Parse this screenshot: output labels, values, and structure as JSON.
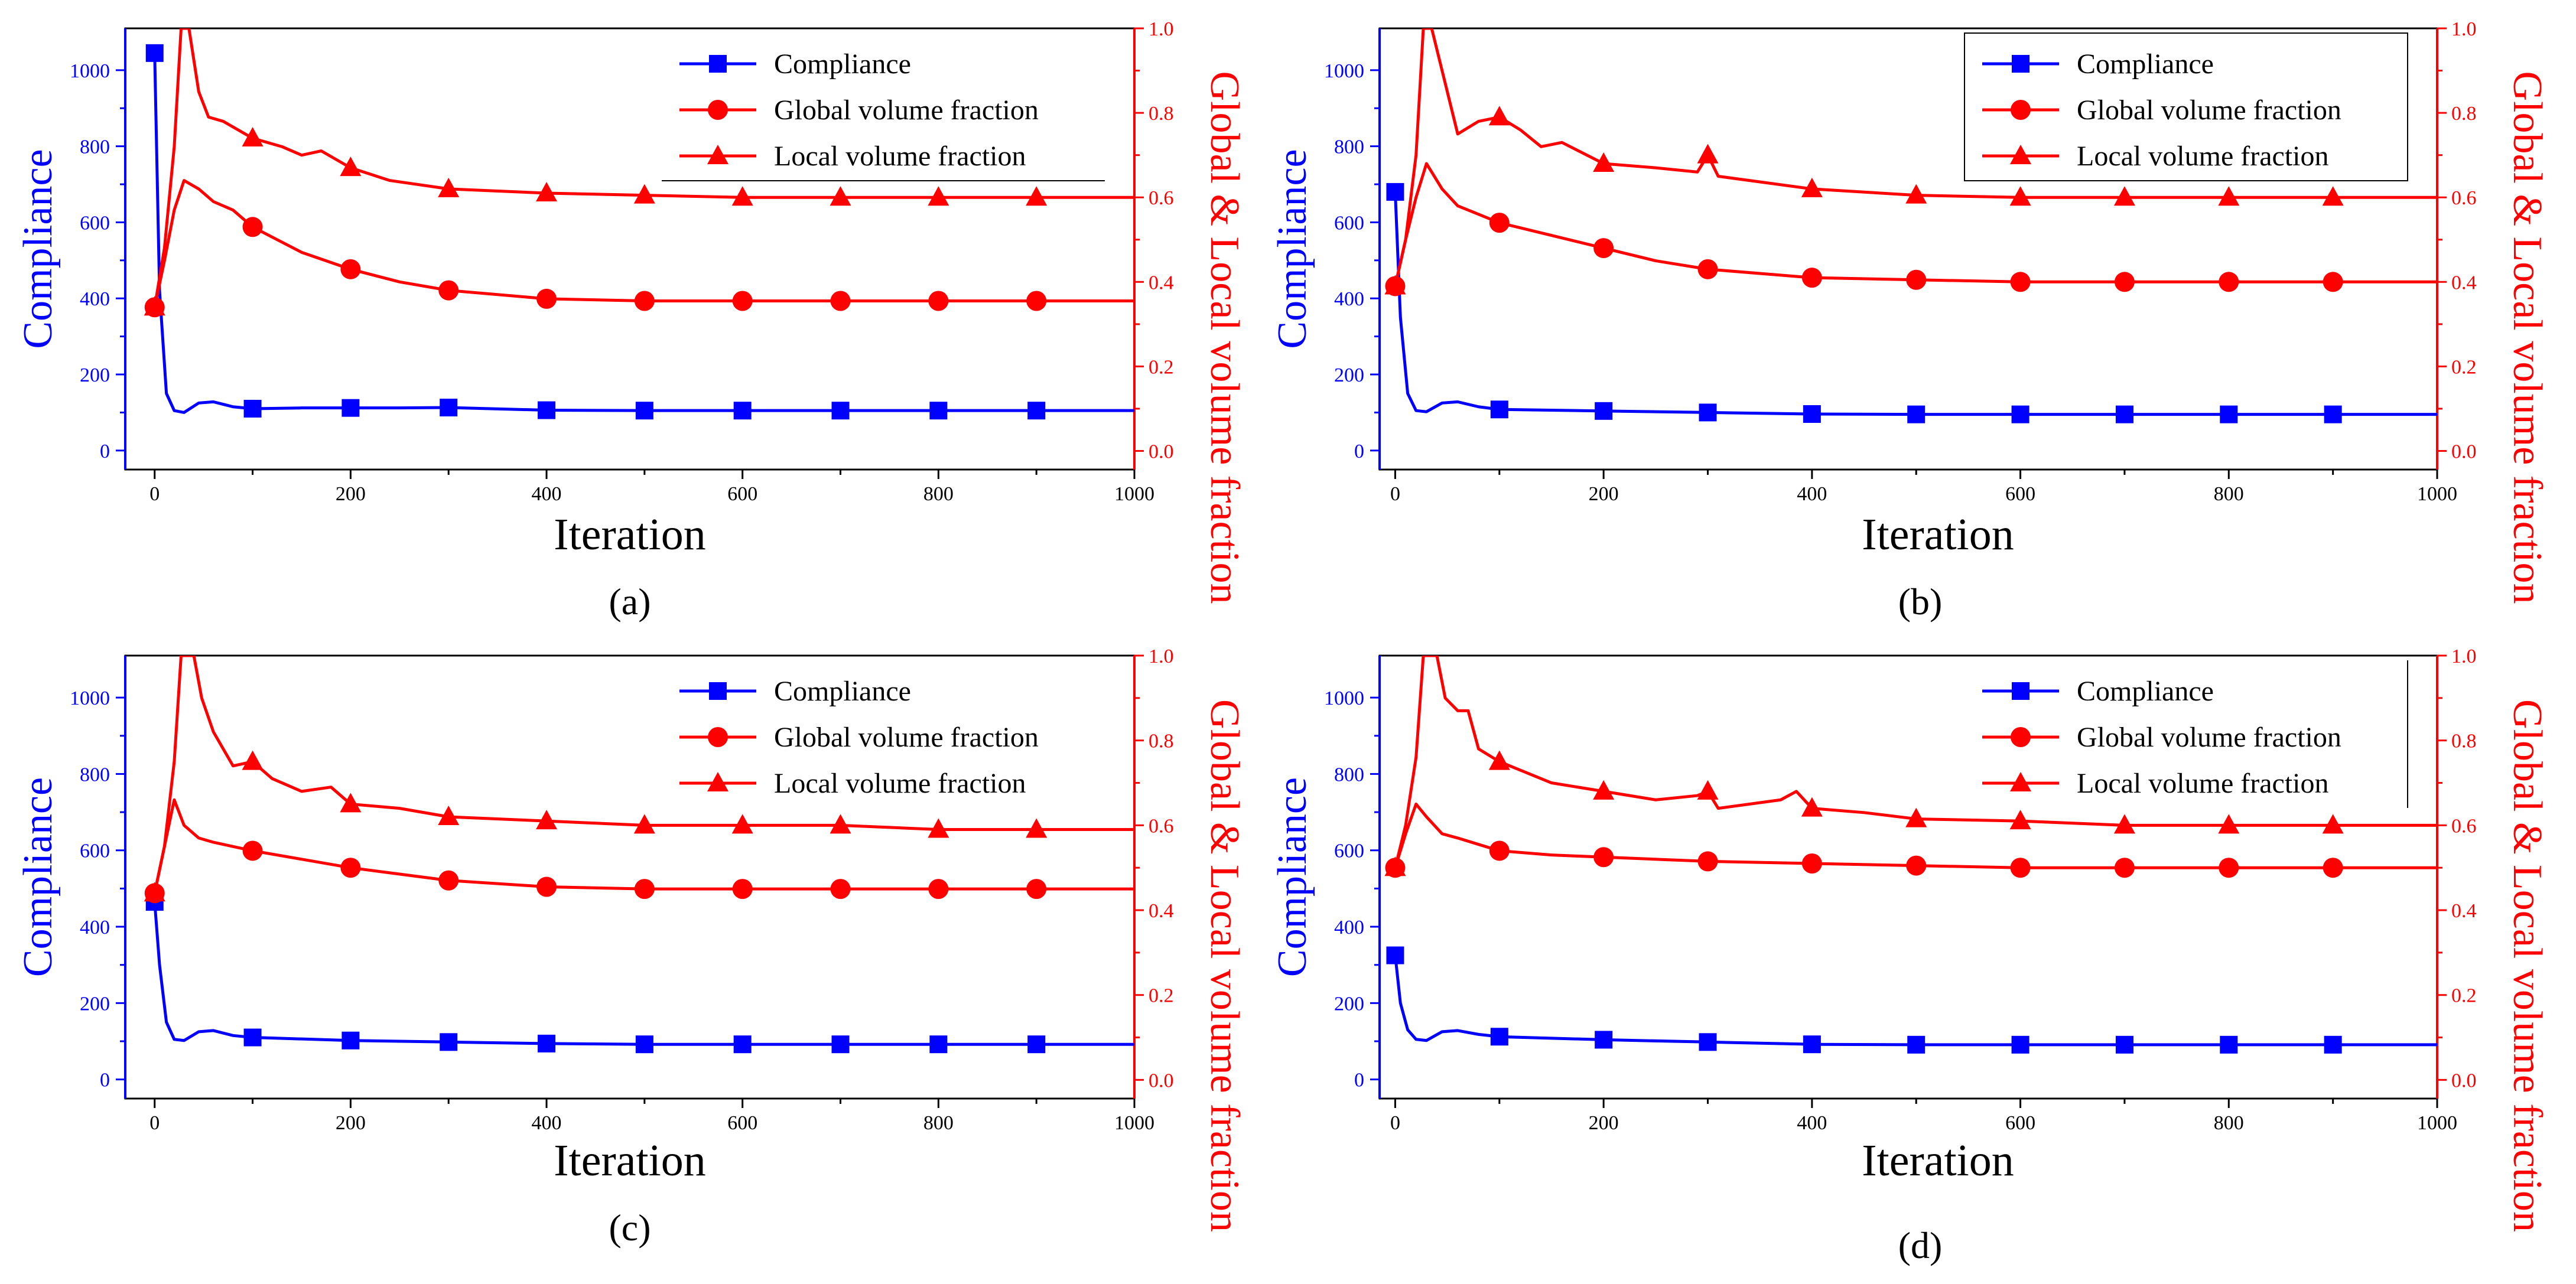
{
  "chart_data": [
    {
      "panel_label": "(a)",
      "type": "line",
      "xlabel": "Iteration",
      "ylabel_left": "Compliance",
      "ylabel_right": "Global & Local volume fraction",
      "xlim": [
        -30,
        1000
      ],
      "ylim_left": [
        -50,
        1110
      ],
      "ylim_right": [
        -0.044,
        1.0
      ],
      "x_ticks": [
        0,
        200,
        400,
        600,
        800,
        1000
      ],
      "x_minor_ticks": [
        100,
        300,
        500,
        700,
        900
      ],
      "y_left_ticks": [
        0,
        200,
        400,
        600,
        800,
        1000
      ],
      "y_right_ticks": [
        0.0,
        0.2,
        0.4,
        0.6,
        0.8,
        1.0
      ],
      "legend_position": "top-right",
      "legend_frame": "partial",
      "series": [
        {
          "name": "Compliance",
          "axis": "left",
          "color": "#0000ff",
          "marker": "square",
          "x": [
            0,
            5,
            12,
            20,
            30,
            45,
            60,
            80,
            100,
            150,
            200,
            250,
            300,
            400,
            500,
            600,
            700,
            800,
            900,
            1000
          ],
          "values": [
            1045,
            420,
            150,
            105,
            100,
            125,
            128,
            115,
            110,
            112,
            112,
            112,
            113,
            106,
            105,
            105,
            105,
            105,
            105,
            105
          ]
        },
        {
          "name": "Global volume fraction",
          "axis": "right",
          "color": "#ff0000",
          "marker": "circle",
          "x": [
            0,
            10,
            20,
            30,
            45,
            60,
            80,
            100,
            150,
            200,
            250,
            300,
            400,
            500,
            600,
            700,
            800,
            900,
            1000
          ],
          "values": [
            0.34,
            0.45,
            0.57,
            0.64,
            0.62,
            0.59,
            0.57,
            0.53,
            0.47,
            0.43,
            0.4,
            0.38,
            0.36,
            0.355,
            0.355,
            0.355,
            0.355,
            0.355,
            0.355
          ]
        },
        {
          "name": "Local volume fraction",
          "axis": "right",
          "color": "#ff0000",
          "marker": "triangle",
          "x": [
            0,
            10,
            20,
            27,
            35,
            45,
            55,
            70,
            100,
            130,
            150,
            170,
            200,
            240,
            300,
            400,
            500,
            600,
            700,
            800,
            900,
            1000
          ],
          "values": [
            0.34,
            0.48,
            0.72,
            1.0,
            1.0,
            0.85,
            0.79,
            0.78,
            0.74,
            0.72,
            0.7,
            0.71,
            0.67,
            0.64,
            0.62,
            0.61,
            0.605,
            0.6,
            0.6,
            0.6,
            0.6,
            0.6
          ]
        }
      ]
    },
    {
      "panel_label": "(b)",
      "type": "line",
      "xlabel": "Iteration",
      "ylabel_left": "Compliance",
      "ylabel_right": "Global & Local volume fraction",
      "xlim": [
        -15,
        1000
      ],
      "ylim_left": [
        -50,
        1110
      ],
      "ylim_right": [
        -0.044,
        1.0
      ],
      "x_ticks": [
        0,
        200,
        400,
        600,
        800,
        1000
      ],
      "x_minor_ticks": [
        100,
        300,
        500,
        700,
        900
      ],
      "y_left_ticks": [
        0,
        200,
        400,
        600,
        800,
        1000
      ],
      "y_right_ticks": [
        0.0,
        0.2,
        0.4,
        0.6,
        0.8,
        1.0
      ],
      "legend_position": "top-right",
      "legend_frame": "box",
      "series": [
        {
          "name": "Compliance",
          "axis": "left",
          "color": "#0000ff",
          "marker": "square",
          "x": [
            0,
            5,
            12,
            20,
            30,
            45,
            60,
            80,
            100,
            200,
            300,
            400,
            500,
            600,
            700,
            800,
            900,
            1000
          ],
          "values": [
            680,
            350,
            150,
            105,
            102,
            125,
            128,
            115,
            108,
            104,
            100,
            96,
            95,
            95,
            95,
            95,
            95,
            95
          ]
        },
        {
          "name": "Global volume fraction",
          "axis": "right",
          "color": "#ff0000",
          "marker": "circle",
          "x": [
            0,
            10,
            20,
            30,
            45,
            60,
            80,
            100,
            150,
            200,
            250,
            300,
            400,
            500,
            600,
            700,
            800,
            900,
            1000
          ],
          "values": [
            0.39,
            0.5,
            0.6,
            0.68,
            0.62,
            0.58,
            0.56,
            0.54,
            0.51,
            0.48,
            0.45,
            0.43,
            0.41,
            0.405,
            0.4,
            0.4,
            0.4,
            0.4,
            0.4
          ]
        },
        {
          "name": "Local volume fraction",
          "axis": "right",
          "color": "#ff0000",
          "marker": "triangle",
          "x": [
            0,
            10,
            20,
            27,
            35,
            45,
            60,
            80,
            100,
            120,
            140,
            160,
            200,
            250,
            290,
            300,
            310,
            400,
            500,
            600,
            700,
            800,
            900,
            1000
          ],
          "values": [
            0.39,
            0.5,
            0.7,
            1.0,
            1.0,
            0.9,
            0.75,
            0.78,
            0.79,
            0.76,
            0.72,
            0.73,
            0.68,
            0.67,
            0.66,
            0.7,
            0.65,
            0.62,
            0.605,
            0.6,
            0.6,
            0.6,
            0.6,
            0.6
          ]
        }
      ]
    },
    {
      "panel_label": "(c)",
      "type": "line",
      "xlabel": "Iteration",
      "ylabel_left": "Compliance",
      "ylabel_right": "Global & Local volume fraction",
      "xlim": [
        -30,
        1000
      ],
      "ylim_left": [
        -50,
        1110
      ],
      "ylim_right": [
        -0.044,
        1.0
      ],
      "x_ticks": [
        0,
        200,
        400,
        600,
        800,
        1000
      ],
      "x_minor_ticks": [
        100,
        300,
        500,
        700,
        900
      ],
      "y_left_ticks": [
        0,
        200,
        400,
        600,
        800,
        1000
      ],
      "y_right_ticks": [
        0.0,
        0.2,
        0.4,
        0.6,
        0.8,
        1.0
      ],
      "legend_position": "top-right",
      "legend_frame": "none",
      "series": [
        {
          "name": "Compliance",
          "axis": "left",
          "color": "#0000ff",
          "marker": "square",
          "x": [
            0,
            5,
            12,
            20,
            30,
            45,
            60,
            80,
            100,
            200,
            300,
            400,
            500,
            600,
            700,
            800,
            900,
            1000
          ],
          "values": [
            465,
            300,
            150,
            105,
            102,
            125,
            128,
            115,
            110,
            102,
            98,
            94,
            92,
            92,
            92,
            92,
            92,
            92
          ]
        },
        {
          "name": "Global volume fraction",
          "axis": "right",
          "color": "#ff0000",
          "marker": "circle",
          "x": [
            0,
            10,
            20,
            30,
            45,
            60,
            80,
            100,
            150,
            200,
            250,
            300,
            400,
            500,
            600,
            700,
            800,
            900,
            1000
          ],
          "values": [
            0.44,
            0.55,
            0.66,
            0.6,
            0.57,
            0.56,
            0.55,
            0.54,
            0.52,
            0.5,
            0.485,
            0.47,
            0.455,
            0.45,
            0.45,
            0.45,
            0.45,
            0.45,
            0.45
          ]
        },
        {
          "name": "Local volume fraction",
          "axis": "right",
          "color": "#ff0000",
          "marker": "triangle",
          "x": [
            0,
            10,
            20,
            27,
            40,
            48,
            60,
            80,
            100,
            120,
            150,
            180,
            200,
            250,
            300,
            400,
            500,
            600,
            700,
            800,
            900,
            1000
          ],
          "values": [
            0.44,
            0.55,
            0.75,
            1.0,
            1.0,
            0.9,
            0.82,
            0.74,
            0.75,
            0.71,
            0.68,
            0.69,
            0.65,
            0.64,
            0.62,
            0.61,
            0.6,
            0.6,
            0.6,
            0.59,
            0.59,
            0.59
          ]
        }
      ]
    },
    {
      "panel_label": "(d)",
      "type": "line",
      "xlabel": "Iteration",
      "ylabel_left": "Compliance",
      "ylabel_right": "Global & Local volume fraction",
      "xlim": [
        -15,
        1000
      ],
      "ylim_left": [
        -50,
        1110
      ],
      "ylim_right": [
        -0.044,
        1.0
      ],
      "x_ticks": [
        0,
        200,
        400,
        600,
        800,
        1000
      ],
      "x_minor_ticks": [
        100,
        300,
        500,
        700,
        900
      ],
      "y_left_ticks": [
        0,
        200,
        400,
        600,
        800,
        1000
      ],
      "y_right_ticks": [
        0.0,
        0.2,
        0.4,
        0.6,
        0.8,
        1.0
      ],
      "legend_position": "top-right",
      "legend_frame": "right-edge",
      "series": [
        {
          "name": "Compliance",
          "axis": "left",
          "color": "#0000ff",
          "marker": "square",
          "x": [
            0,
            5,
            12,
            20,
            30,
            45,
            60,
            80,
            100,
            200,
            300,
            400,
            500,
            600,
            700,
            800,
            900,
            1000
          ],
          "values": [
            325,
            200,
            130,
            105,
            102,
            125,
            128,
            118,
            112,
            104,
            98,
            92,
            91,
            91,
            91,
            91,
            91,
            91
          ]
        },
        {
          "name": "Global volume fraction",
          "axis": "right",
          "color": "#ff0000",
          "marker": "circle",
          "x": [
            0,
            10,
            20,
            30,
            45,
            60,
            80,
            100,
            150,
            200,
            250,
            300,
            400,
            500,
            600,
            700,
            800,
            900,
            1000
          ],
          "values": [
            0.5,
            0.58,
            0.65,
            0.62,
            0.58,
            0.57,
            0.555,
            0.54,
            0.53,
            0.525,
            0.52,
            0.515,
            0.51,
            0.505,
            0.5,
            0.5,
            0.5,
            0.5,
            0.5
          ]
        },
        {
          "name": "Local volume fraction",
          "axis": "right",
          "color": "#ff0000",
          "marker": "triangle",
          "x": [
            0,
            10,
            20,
            27,
            40,
            48,
            60,
            70,
            80,
            100,
            120,
            150,
            200,
            250,
            290,
            300,
            310,
            370,
            385,
            400,
            450,
            500,
            600,
            700,
            800,
            900,
            1000
          ],
          "values": [
            0.5,
            0.6,
            0.76,
            1.0,
            1.0,
            0.9,
            0.87,
            0.87,
            0.78,
            0.75,
            0.73,
            0.7,
            0.68,
            0.66,
            0.67,
            0.68,
            0.64,
            0.66,
            0.68,
            0.64,
            0.63,
            0.615,
            0.61,
            0.6,
            0.6,
            0.6,
            0.6
          ]
        }
      ]
    }
  ]
}
